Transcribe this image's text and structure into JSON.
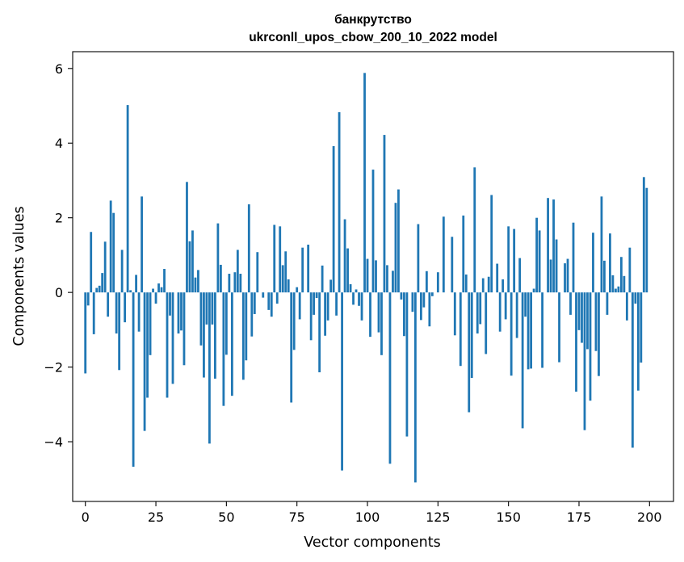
{
  "chart_data": {
    "type": "bar",
    "title": "банкрутство",
    "subtitle": "ukrconll_upos_cbow_200_10_2022 model",
    "xlabel": "Vector components",
    "ylabel": "Components values",
    "xlim": [
      -4.5,
      208.5
    ],
    "ylim": [
      -5.6,
      6.45
    ],
    "xticks": [
      0,
      25,
      50,
      75,
      100,
      125,
      150,
      175,
      200
    ],
    "yticks": [
      -4,
      -2,
      0,
      2,
      4,
      6
    ],
    "xtick_labels": [
      "0",
      "25",
      "50",
      "75",
      "100",
      "125",
      "150",
      "175",
      "200"
    ],
    "ytick_labels": [
      "−4",
      "−2",
      "0",
      "2",
      "4",
      "6"
    ],
    "grid": false,
    "bar_color": "#1f77b4",
    "values": [
      -2.17,
      -0.35,
      1.62,
      -1.12,
      0.12,
      0.18,
      0.52,
      1.36,
      -0.65,
      2.46,
      2.13,
      -1.1,
      -2.08,
      1.14,
      -0.8,
      5.02,
      0.06,
      -4.67,
      0.47,
      -1.05,
      2.57,
      -3.71,
      -2.82,
      -1.68,
      0.1,
      -0.3,
      0.24,
      0.14,
      0.63,
      -2.82,
      -0.62,
      -2.45,
      0.0,
      -1.1,
      -1.02,
      -1.95,
      2.96,
      1.37,
      1.66,
      0.4,
      0.6,
      -1.42,
      -2.28,
      -0.86,
      -4.05,
      -0.86,
      -2.31,
      1.85,
      0.74,
      -3.04,
      -1.67,
      0.5,
      -2.77,
      0.54,
      1.14,
      0.5,
      -2.34,
      -1.82,
      2.36,
      -1.18,
      -0.58,
      1.08,
      0.0,
      -0.14,
      0.0,
      -0.47,
      -0.65,
      1.81,
      -0.3,
      1.77,
      0.73,
      1.1,
      0.35,
      -2.95,
      -1.54,
      0.14,
      -0.72,
      1.2,
      0.0,
      1.28,
      -1.28,
      -0.6,
      -0.15,
      -2.14,
      0.72,
      -1.16,
      -0.75,
      0.34,
      3.92,
      -0.62,
      4.83,
      -4.77,
      1.96,
      1.18,
      0.22,
      -0.33,
      0.08,
      -0.36,
      -0.75,
      5.88,
      0.9,
      -1.19,
      3.29,
      0.86,
      -1.07,
      -1.68,
      4.22,
      0.73,
      -4.59,
      0.58,
      2.4,
      2.76,
      -0.19,
      -1.17,
      -3.86,
      0.0,
      -0.52,
      -5.09,
      1.83,
      -0.74,
      -0.4,
      0.57,
      -0.91,
      -0.1,
      0.0,
      0.54,
      0.0,
      2.03,
      0.0,
      0.0,
      1.49,
      -1.15,
      0.0,
      -1.97,
      2.06,
      0.48,
      -3.21,
      -2.29,
      3.35,
      -1.1,
      -0.85,
      0.38,
      -1.65,
      0.42,
      2.61,
      0.0,
      0.77,
      -1.05,
      0.35,
      -0.72,
      1.77,
      -2.23,
      1.7,
      -1.22,
      0.92,
      -3.64,
      -0.65,
      -2.06,
      -2.04,
      0.1,
      2.0,
      1.66,
      -2.02,
      0.0,
      2.53,
      0.88,
      2.49,
      1.42,
      -1.87,
      0.0,
      0.78,
      0.9,
      -0.6,
      1.87,
      -2.66,
      -1.01,
      -1.35,
      -3.69,
      -1.52,
      -2.9,
      1.6,
      -1.57,
      -2.24,
      2.57,
      0.85,
      -0.6,
      1.58,
      0.46,
      0.1,
      0.16,
      0.95,
      0.44,
      -0.75,
      1.2,
      -4.16,
      -0.3,
      -2.63,
      -1.88,
      3.09,
      2.8
    ]
  }
}
